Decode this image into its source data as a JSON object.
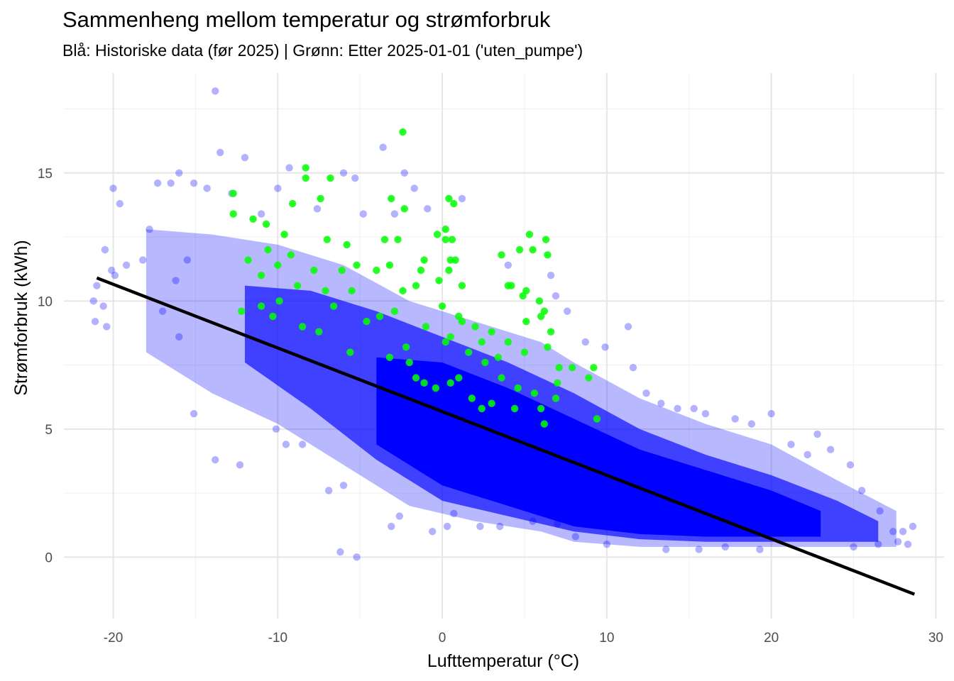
{
  "chart_data": {
    "type": "scatter",
    "title": "Sammenheng mellom temperatur og strømforbruk",
    "subtitle": "Blå: Historiske data (før 2025)  |  Grønn: Etter 2025-01-01 ('uten_pumpe')",
    "xlabel": "Lufttemperatur (°C)",
    "ylabel": "Strømforbruk (kWh)",
    "xlim": [
      -23,
      30.5
    ],
    "ylim": [
      -2.4,
      18.9
    ],
    "x_ticks": [
      -20,
      -10,
      0,
      10,
      20,
      30
    ],
    "x_tick_labels": [
      "-20",
      "-10",
      "0",
      "10",
      "20",
      "30"
    ],
    "y_ticks": [
      0,
      5,
      10,
      15
    ],
    "y_tick_labels": [
      "0",
      "5",
      "10",
      "15"
    ],
    "grid": true,
    "series": [
      {
        "color": "#0000ff",
        "opacity": 0.3,
        "points": [
          [
            -13.8,
            18.2
          ],
          [
            -13.5,
            15.8
          ],
          [
            -12.0,
            15.6
          ],
          [
            -16.0,
            15.0
          ],
          [
            -15.1,
            14.6
          ],
          [
            -20.0,
            14.4
          ],
          [
            -19.6,
            13.8
          ],
          [
            -17.3,
            14.6
          ],
          [
            -16.5,
            14.6
          ],
          [
            -14.3,
            14.4
          ],
          [
            -12.8,
            14.2
          ],
          [
            -10.0,
            14.4
          ],
          [
            -9.3,
            15.2
          ],
          [
            -6.0,
            15.0
          ],
          [
            -5.3,
            14.8
          ],
          [
            -3.6,
            16.0
          ],
          [
            -2.3,
            15.0
          ],
          [
            -1.7,
            14.4
          ],
          [
            1.2,
            14.0
          ],
          [
            -2.9,
            13.4
          ],
          [
            -0.9,
            13.6
          ],
          [
            -11.0,
            13.4
          ],
          [
            -7.6,
            13.6
          ],
          [
            -4.8,
            13.4
          ],
          [
            4.0,
            11.4
          ],
          [
            6.6,
            11.0
          ],
          [
            6.9,
            10.2
          ],
          [
            7.6,
            9.6
          ],
          [
            8.7,
            8.4
          ],
          [
            9.9,
            8.2
          ],
          [
            11.3,
            9.0
          ],
          [
            11.6,
            7.4
          ],
          [
            12.4,
            6.4
          ],
          [
            13.3,
            6.0
          ],
          [
            14.3,
            5.8
          ],
          [
            15.3,
            5.8
          ],
          [
            16.0,
            5.6
          ],
          [
            17.8,
            5.4
          ],
          [
            18.8,
            5.2
          ],
          [
            20.0,
            5.6
          ],
          [
            21.2,
            4.4
          ],
          [
            22.2,
            4.0
          ],
          [
            22.8,
            4.8
          ],
          [
            23.6,
            4.2
          ],
          [
            24.8,
            3.6
          ],
          [
            25.5,
            2.6
          ],
          [
            26.6,
            1.8
          ],
          [
            27.4,
            1.0
          ],
          [
            28.0,
            1.0
          ],
          [
            28.6,
            1.2
          ],
          [
            27.7,
            0.6
          ],
          [
            28.3,
            0.5
          ],
          [
            26.5,
            0.5
          ],
          [
            25.0,
            0.4
          ],
          [
            -21.0,
            10.6
          ],
          [
            -20.5,
            12.0
          ],
          [
            -20.1,
            11.2
          ],
          [
            -20.6,
            9.8
          ],
          [
            -21.1,
            9.2
          ],
          [
            -20.4,
            9.0
          ],
          [
            -21.2,
            10.0
          ],
          [
            -19.9,
            11.0
          ],
          [
            -19.2,
            11.4
          ],
          [
            -18.2,
            11.6
          ],
          [
            -17.8,
            12.8
          ],
          [
            -17.0,
            9.6
          ],
          [
            -16.0,
            8.6
          ],
          [
            -16.2,
            10.8
          ],
          [
            -15.5,
            11.6
          ],
          [
            -15.1,
            5.6
          ],
          [
            -13.8,
            3.8
          ],
          [
            -12.3,
            3.6
          ],
          [
            -10.1,
            5.0
          ],
          [
            -9.5,
            4.4
          ],
          [
            -8.5,
            4.4
          ],
          [
            -6.2,
            0.2
          ],
          [
            -6.0,
            2.8
          ],
          [
            -6.9,
            2.6
          ],
          [
            -5.2,
            0.0
          ],
          [
            -3.1,
            1.2
          ],
          [
            -2.6,
            1.6
          ],
          [
            -0.6,
            1.0
          ],
          [
            0.3,
            1.2
          ],
          [
            0.7,
            1.7
          ],
          [
            2.3,
            1.2
          ],
          [
            3.5,
            1.2
          ],
          [
            5.5,
            1.4
          ],
          [
            7.0,
            1.3
          ],
          [
            8.1,
            0.8
          ],
          [
            10.0,
            0.5
          ],
          [
            13.6,
            0.3
          ],
          [
            15.6,
            0.3
          ],
          [
            17.2,
            0.4
          ],
          [
            19.3,
            0.3
          ]
        ]
      },
      {
        "color": "#00ff00",
        "opacity": 0.85,
        "points": [
          [
            -2.4,
            16.6
          ],
          [
            -8.3,
            15.2
          ],
          [
            -8.3,
            14.8
          ],
          [
            -6.8,
            14.8
          ],
          [
            -12.7,
            14.2
          ],
          [
            -7.4,
            14.0
          ],
          [
            -3.1,
            14.0
          ],
          [
            -2.3,
            13.6
          ],
          [
            0.4,
            14.0
          ],
          [
            0.7,
            13.8
          ],
          [
            -9.1,
            13.8
          ],
          [
            -12.7,
            13.4
          ],
          [
            -11.5,
            13.2
          ],
          [
            -10.7,
            13.0
          ],
          [
            0.2,
            12.8
          ],
          [
            0.2,
            12.4
          ],
          [
            0.6,
            12.4
          ],
          [
            -0.3,
            12.6
          ],
          [
            -3.5,
            12.4
          ],
          [
            -2.7,
            12.4
          ],
          [
            5.3,
            12.6
          ],
          [
            6.3,
            12.4
          ],
          [
            4.7,
            12.0
          ],
          [
            5.5,
            12.0
          ],
          [
            6.4,
            11.8
          ],
          [
            3.6,
            11.8
          ],
          [
            0.5,
            11.6
          ],
          [
            0.8,
            11.6
          ],
          [
            -3.2,
            11.4
          ],
          [
            -1.1,
            11.6
          ],
          [
            -1.3,
            11.2
          ],
          [
            0.4,
            11.2
          ],
          [
            -4.0,
            11.2
          ],
          [
            -7.8,
            11.2
          ],
          [
            -11.0,
            11.0
          ],
          [
            -10.0,
            11.4
          ],
          [
            -9.2,
            11.8
          ],
          [
            -5.2,
            11.4
          ],
          [
            -6.1,
            11.2
          ],
          [
            4.0,
            10.6
          ],
          [
            4.2,
            10.6
          ],
          [
            1.2,
            10.6
          ],
          [
            -0.2,
            10.8
          ],
          [
            -1.6,
            10.6
          ],
          [
            -2.4,
            10.4
          ],
          [
            -5.5,
            10.4
          ],
          [
            -7.1,
            10.4
          ],
          [
            -9.9,
            10.0
          ],
          [
            -11.0,
            9.8
          ],
          [
            5.1,
            10.4
          ],
          [
            4.9,
            10.2
          ],
          [
            5.9,
            10.0
          ],
          [
            6.2,
            9.6
          ],
          [
            5.1,
            9.2
          ],
          [
            6.0,
            9.4
          ],
          [
            6.6,
            8.8
          ],
          [
            6.4,
            8.2
          ],
          [
            7.1,
            7.4
          ],
          [
            7.9,
            7.4
          ],
          [
            9.2,
            7.4
          ],
          [
            8.9,
            7.0
          ],
          [
            7.0,
            6.8
          ],
          [
            6.9,
            6.2
          ],
          [
            6.0,
            5.8
          ],
          [
            6.2,
            5.2
          ],
          [
            9.4,
            5.4
          ],
          [
            4.4,
            5.8
          ],
          [
            3.0,
            6.0
          ],
          [
            2.4,
            5.8
          ],
          [
            1.8,
            6.2
          ],
          [
            1.0,
            7.0
          ],
          [
            0.5,
            6.8
          ],
          [
            -0.4,
            6.6
          ],
          [
            -1.1,
            6.8
          ],
          [
            -1.6,
            7.0
          ],
          [
            -2.0,
            7.6
          ],
          [
            -3.2,
            7.8
          ],
          [
            -5.6,
            8.0
          ],
          [
            -7.5,
            8.8
          ],
          [
            -8.5,
            9.0
          ],
          [
            -10.3,
            9.4
          ],
          [
            -12.2,
            9.6
          ],
          [
            -4.6,
            9.2
          ],
          [
            -3.8,
            9.4
          ],
          [
            -2.9,
            9.6
          ],
          [
            0.0,
            9.8
          ],
          [
            1.0,
            9.4
          ],
          [
            2.0,
            9.0
          ],
          [
            3.0,
            8.8
          ],
          [
            4.0,
            8.4
          ],
          [
            5.0,
            8.0
          ],
          [
            0.5,
            8.6
          ],
          [
            1.6,
            8.0
          ],
          [
            2.6,
            7.6
          ],
          [
            3.6,
            7.0
          ],
          [
            4.6,
            6.6
          ],
          [
            5.6,
            6.4
          ],
          [
            1.2,
            9.2
          ],
          [
            2.4,
            8.4
          ],
          [
            3.4,
            7.8
          ],
          [
            -1.0,
            9.0
          ],
          [
            0.2,
            8.4
          ],
          [
            -2.2,
            8.2
          ],
          [
            -6.6,
            9.8
          ],
          [
            -8.8,
            10.6
          ],
          [
            -10.6,
            12.0
          ],
          [
            -9.6,
            12.6
          ],
          [
            -11.8,
            11.6
          ],
          [
            -7.0,
            12.4
          ],
          [
            -5.8,
            12.2
          ]
        ]
      }
    ],
    "trendline": {
      "color": "#000000",
      "x": [
        -21.0,
        28.7
      ],
      "y": [
        10.9,
        -1.45
      ]
    }
  }
}
